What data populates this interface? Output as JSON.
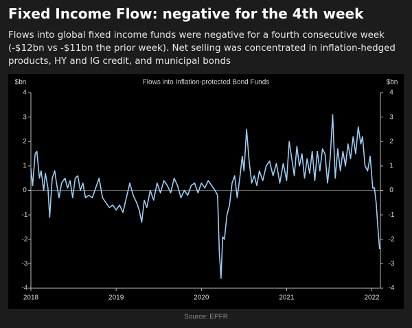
{
  "header": {
    "title": "Fixed Income Flow: negative for the 4th week",
    "subtitle": "Flows into global fixed income funds were negative for a fourth consecutive week (-$12bn vs -$11bn the prior week). Net selling was concentrated in inflation-hedged products, HY and IG credit, and municipal bonds"
  },
  "chart_data": {
    "type": "line",
    "title": "Flows into Inflation-protected  Bond Funds",
    "y_label": "$bn",
    "source": "Source: EPFR",
    "x": [
      2018.0,
      2018.02,
      2018.05,
      2018.07,
      2018.1,
      2018.12,
      2018.15,
      2018.17,
      2018.2,
      2018.22,
      2018.25,
      2018.28,
      2018.3,
      2018.33,
      2018.36,
      2018.4,
      2018.43,
      2018.46,
      2018.49,
      2018.52,
      2018.55,
      2018.58,
      2018.61,
      2018.64,
      2018.68,
      2018.72,
      2018.76,
      2018.8,
      2018.84,
      2018.88,
      2018.92,
      2018.96,
      2019.0,
      2019.04,
      2019.08,
      2019.12,
      2019.16,
      2019.2,
      2019.24,
      2019.27,
      2019.3,
      2019.33,
      2019.36,
      2019.4,
      2019.44,
      2019.48,
      2019.52,
      2019.56,
      2019.6,
      2019.64,
      2019.68,
      2019.72,
      2019.76,
      2019.8,
      2019.84,
      2019.88,
      2019.92,
      2019.96,
      2020.0,
      2020.04,
      2020.08,
      2020.12,
      2020.16,
      2020.19,
      2020.21,
      2020.23,
      2020.25,
      2020.27,
      2020.3,
      2020.33,
      2020.36,
      2020.39,
      2020.42,
      2020.45,
      2020.48,
      2020.5,
      2020.53,
      2020.56,
      2020.59,
      2020.62,
      2020.65,
      2020.68,
      2020.72,
      2020.76,
      2020.8,
      2020.84,
      2020.88,
      2020.92,
      2020.96,
      2021.0,
      2021.03,
      2021.06,
      2021.09,
      2021.12,
      2021.15,
      2021.18,
      2021.21,
      2021.24,
      2021.27,
      2021.3,
      2021.33,
      2021.36,
      2021.39,
      2021.42,
      2021.45,
      2021.48,
      2021.51,
      2021.54,
      2021.57,
      2021.6,
      2021.63,
      2021.66,
      2021.69,
      2021.72,
      2021.75,
      2021.78,
      2021.81,
      2021.84,
      2021.87,
      2021.89,
      2021.92,
      2021.95,
      2021.98,
      2022.01,
      2022.03,
      2022.05,
      2022.07,
      2022.09
    ],
    "series": [
      {
        "name": "Flows into Inflation-protected Bond Funds",
        "color": "#9ccdf2",
        "values": [
          0.9,
          0.2,
          1.5,
          1.6,
          0.5,
          0.8,
          0.0,
          0.7,
          0.1,
          -1.1,
          0.5,
          0.8,
          0.3,
          -0.3,
          0.3,
          0.5,
          0.1,
          0.4,
          -0.3,
          0.5,
          0.6,
          0.0,
          0.3,
          -0.3,
          -0.2,
          -0.3,
          0.1,
          0.5,
          -0.3,
          -0.5,
          -0.7,
          -0.6,
          -0.8,
          -0.6,
          -0.9,
          -0.3,
          0.3,
          -0.2,
          -0.5,
          -0.8,
          -1.3,
          -0.4,
          -0.7,
          0.0,
          -0.4,
          0.3,
          -0.1,
          0.4,
          0.2,
          -0.1,
          0.5,
          0.2,
          -0.3,
          0.0,
          -0.2,
          0.2,
          0.3,
          -0.1,
          0.3,
          0.1,
          0.4,
          0.2,
          0.0,
          -0.2,
          -2.5,
          -3.6,
          -1.9,
          -2.0,
          -1.0,
          -0.6,
          0.3,
          0.6,
          -0.3,
          0.5,
          1.4,
          0.8,
          2.5,
          1.2,
          0.3,
          0.6,
          0.2,
          0.8,
          0.4,
          1.0,
          1.2,
          0.6,
          1.1,
          0.3,
          1.1,
          0.4,
          2.0,
          1.3,
          0.6,
          1.8,
          1.0,
          1.5,
          0.5,
          1.3,
          0.7,
          1.6,
          0.4,
          1.6,
          0.8,
          1.7,
          1.5,
          0.3,
          1.3,
          3.1,
          0.5,
          1.7,
          0.8,
          1.6,
          1.0,
          1.9,
          1.3,
          2.2,
          1.5,
          2.6,
          1.9,
          2.2,
          1.0,
          0.8,
          1.4,
          0.1,
          0.1,
          -0.5,
          -1.5,
          -2.4
        ]
      }
    ],
    "xlim": [
      2018,
      2022.1
    ],
    "xticks": [
      2018,
      2019,
      2020,
      2021,
      2022
    ],
    "ylim": [
      -4,
      4
    ],
    "yticks": [
      -4,
      -3,
      -2,
      -1,
      0,
      1,
      2,
      3,
      4
    ]
  }
}
